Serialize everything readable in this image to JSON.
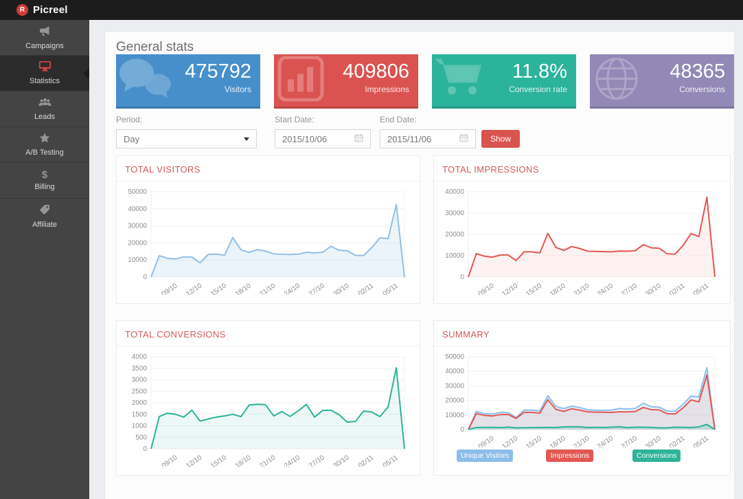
{
  "topbar": {
    "brand": "Picreel",
    "logo_letter": "R"
  },
  "sidebar": {
    "items": [
      {
        "label": "Campaigns",
        "icon": "megaphone-icon",
        "active": false
      },
      {
        "label": "Statistics",
        "icon": "monitor-icon",
        "active": true
      },
      {
        "label": "Leads",
        "icon": "users-icon",
        "active": false
      },
      {
        "label": "A/B Testing",
        "icon": "star-icon",
        "active": false
      },
      {
        "label": "Billing",
        "icon": "dollar-icon",
        "active": false
      },
      {
        "label": "Affiliate",
        "icon": "tag-icon",
        "active": false
      }
    ]
  },
  "main": {
    "title": "General stats",
    "stat_cards": [
      {
        "value": "475792",
        "label": "Visitors",
        "color": "#478fca",
        "icon": "chat-bubbles-icon"
      },
      {
        "value": "409806",
        "label": "Impressions",
        "color": "#da5350",
        "icon": "bar-chart-icon"
      },
      {
        "value": "11.8%",
        "label": "Conversion rate",
        "color": "#2bb39b",
        "icon": "shopping-cart-icon"
      },
      {
        "value": "48365",
        "label": "Conversions",
        "color": "#9289b6",
        "icon": "globe-icon"
      }
    ],
    "filters": {
      "period_label": "Period:",
      "period_value": "Day",
      "start_label": "Start Date:",
      "start_value": "2015/10/06",
      "end_label": "End Date:",
      "end_value": "2015/11/06",
      "show_label": "Show"
    }
  },
  "chart_data": [
    {
      "id": "visitors",
      "type": "area",
      "title": "TOTAL VISITORS",
      "ylim": [
        0,
        50000
      ],
      "yticks": [
        0,
        10000,
        20000,
        30000,
        40000,
        50000
      ],
      "x_tick_labels": [
        "09/10",
        "12/10",
        "15/10",
        "18/10",
        "21/10",
        "24/10",
        "27/10",
        "30/10",
        "02/11",
        "05/11"
      ],
      "x_tick_indices": [
        3,
        6,
        9,
        12,
        15,
        18,
        21,
        24,
        27,
        30
      ],
      "grid": true,
      "legend_position": "none",
      "series": [
        {
          "name": "Visitors",
          "color": "#90c0e8",
          "fill": "rgba(144,192,232,0.18)",
          "values": [
            0,
            12500,
            11000,
            10600,
            11800,
            11700,
            8300,
            13300,
            13400,
            12800,
            23200,
            16000,
            14400,
            16100,
            15200,
            13600,
            13300,
            13200,
            13400,
            14500,
            14100,
            14500,
            18000,
            15700,
            15400,
            12700,
            12600,
            17300,
            23000,
            22500,
            42500,
            0
          ]
        }
      ]
    },
    {
      "id": "impressions",
      "type": "area",
      "title": "TOTAL IMPRESSIONS",
      "ylim": [
        0,
        40000
      ],
      "yticks": [
        0,
        10000,
        20000,
        30000,
        40000
      ],
      "x_tick_labels": [
        "09/10",
        "12/10",
        "15/10",
        "18/10",
        "21/10",
        "24/10",
        "27/10",
        "30/10",
        "02/11",
        "05/11"
      ],
      "x_tick_indices": [
        3,
        6,
        9,
        12,
        15,
        18,
        21,
        24,
        27,
        30
      ],
      "grid": true,
      "legend_position": "none",
      "series": [
        {
          "name": "Impressions",
          "color": "#e25752",
          "fill": "rgba(226,87,82,0.08)",
          "values": [
            0,
            11000,
            9800,
            9300,
            10300,
            10400,
            7700,
            11800,
            11800,
            11300,
            20500,
            13900,
            12500,
            14300,
            13400,
            12100,
            12000,
            11900,
            11800,
            12200,
            12100,
            12400,
            15200,
            13700,
            13500,
            10900,
            10700,
            14800,
            20400,
            19000,
            37500,
            0
          ]
        }
      ]
    },
    {
      "id": "conversions",
      "type": "area",
      "title": "TOTAL CONVERSIONS",
      "ylim": [
        0,
        4000
      ],
      "yticks": [
        0,
        500,
        1000,
        1500,
        2000,
        2500,
        3000,
        3500,
        4000
      ],
      "x_tick_labels": [
        "09/10",
        "12/10",
        "15/10",
        "18/10",
        "21/10",
        "24/10",
        "27/10",
        "30/10",
        "02/11",
        "05/11"
      ],
      "x_tick_indices": [
        3,
        6,
        9,
        12,
        15,
        18,
        21,
        24,
        27,
        30
      ],
      "grid": true,
      "legend_position": "none",
      "series": [
        {
          "name": "Conversions",
          "color": "#2bb398",
          "fill": "rgba(43,179,152,0.09)",
          "values": [
            0,
            1400,
            1550,
            1500,
            1380,
            1680,
            1200,
            1300,
            1380,
            1430,
            1500,
            1400,
            1900,
            1930,
            1920,
            1430,
            1620,
            1410,
            1650,
            1930,
            1380,
            1670,
            1680,
            1480,
            1160,
            1190,
            1640,
            1600,
            1400,
            1820,
            3520,
            0
          ]
        }
      ]
    },
    {
      "id": "summary",
      "type": "area",
      "title": "SUMMARY",
      "ylim": [
        0,
        50000
      ],
      "yticks": [
        0,
        10000,
        20000,
        30000,
        40000,
        50000
      ],
      "x_tick_labels": [
        "09/10",
        "12/10",
        "15/10",
        "18/10",
        "21/10",
        "24/10",
        "27/10",
        "30/10",
        "02/11",
        "05/11"
      ],
      "x_tick_indices": [
        3,
        6,
        9,
        12,
        15,
        18,
        21,
        24,
        27,
        30
      ],
      "grid": true,
      "legend_position": "bottom",
      "series": [
        {
          "name": "Unique Visitors",
          "color": "#8cbdea",
          "fill": "rgba(140,189,234,0.22)",
          "values": [
            0,
            12500,
            11000,
            10600,
            11800,
            11700,
            8300,
            13300,
            13400,
            12800,
            23200,
            16000,
            14400,
            16100,
            15200,
            13600,
            13300,
            13200,
            13400,
            14500,
            14100,
            14500,
            18000,
            15700,
            15400,
            12700,
            12600,
            17300,
            23000,
            22500,
            42500,
            0
          ]
        },
        {
          "name": "Impressions",
          "color": "#e25752",
          "fill": "rgba(226,87,82,0.10)",
          "values": [
            0,
            11000,
            9800,
            9300,
            10300,
            10400,
            7700,
            11800,
            11800,
            11300,
            20500,
            13900,
            12500,
            14300,
            13400,
            12100,
            12000,
            11900,
            11800,
            12200,
            12100,
            12400,
            15200,
            13700,
            13500,
            10900,
            10700,
            14800,
            20400,
            19000,
            37500,
            0
          ]
        },
        {
          "name": "Conversions",
          "color": "#2bb398",
          "fill": "rgba(43,179,152,0.18)",
          "values": [
            0,
            1400,
            1550,
            1500,
            1380,
            1680,
            1200,
            1300,
            1380,
            1430,
            1500,
            1400,
            1900,
            1930,
            1920,
            1430,
            1620,
            1410,
            1650,
            1930,
            1380,
            1670,
            1680,
            1480,
            1160,
            1190,
            1640,
            1600,
            1400,
            1820,
            3520,
            0
          ]
        }
      ],
      "legend": [
        {
          "label": "Unique Visitors",
          "color": "#8cbdea"
        },
        {
          "label": "Impressions",
          "color": "#e25752"
        },
        {
          "label": "Conversions",
          "color": "#2eb398"
        }
      ]
    }
  ]
}
